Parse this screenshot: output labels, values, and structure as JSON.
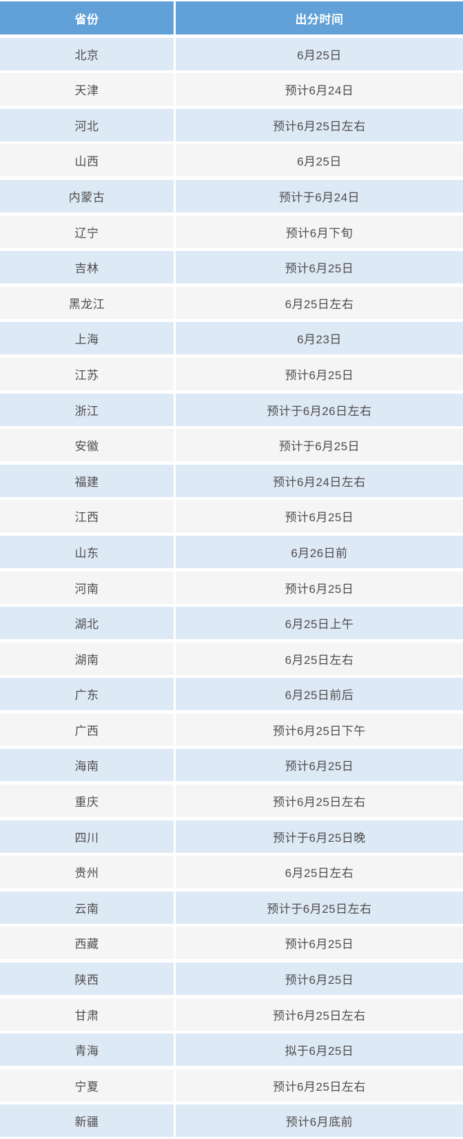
{
  "colors": {
    "header_bg": "#61a1d8",
    "header_text": "#ffffff",
    "row_blue": "#dee9f6",
    "row_gray": "#f5f5f5",
    "body_text": "#4d4d4d"
  },
  "table": {
    "columns": [
      {
        "key": "province",
        "label": "省份"
      },
      {
        "key": "time",
        "label": "出分时间"
      }
    ],
    "rows": [
      {
        "province": "北京",
        "time": "6月25日"
      },
      {
        "province": "天津",
        "time": "预计6月24日"
      },
      {
        "province": "河北",
        "time": "预计6月25日左右"
      },
      {
        "province": "山西",
        "time": "6月25日"
      },
      {
        "province": "内蒙古",
        "time": "预计于6月24日"
      },
      {
        "province": "辽宁",
        "time": "预计6月下旬"
      },
      {
        "province": "吉林",
        "time": "预计6月25日"
      },
      {
        "province": "黑龙江",
        "time": "6月25日左右"
      },
      {
        "province": "上海",
        "time": "6月23日"
      },
      {
        "province": "江苏",
        "time": "预计6月25日"
      },
      {
        "province": "浙江",
        "time": "预计于6月26日左右"
      },
      {
        "province": "安徽",
        "time": "预计于6月25日"
      },
      {
        "province": "福建",
        "time": "预计6月24日左右"
      },
      {
        "province": "江西",
        "time": "预计6月25日"
      },
      {
        "province": "山东",
        "time": "6月26日前"
      },
      {
        "province": "河南",
        "time": "预计6月25日"
      },
      {
        "province": "湖北",
        "time": "6月25日上午"
      },
      {
        "province": "湖南",
        "time": "6月25日左右"
      },
      {
        "province": "广东",
        "time": "6月25日前后"
      },
      {
        "province": "广西",
        "time": "预计6月25日下午"
      },
      {
        "province": "海南",
        "time": "预计6月25日"
      },
      {
        "province": "重庆",
        "time": "预计6月25日左右"
      },
      {
        "province": "四川",
        "time": "预计于6月25日晚"
      },
      {
        "province": "贵州",
        "time": "6月25日左右"
      },
      {
        "province": "云南",
        "time": "预计于6月25日左右"
      },
      {
        "province": "西藏",
        "time": "预计6月25日"
      },
      {
        "province": "陕西",
        "time": "预计6月25日"
      },
      {
        "province": "甘肃",
        "time": "预计6月25日左右"
      },
      {
        "province": "青海",
        "time": "拟于6月25日"
      },
      {
        "province": "宁夏",
        "time": "预计6月25日左右"
      },
      {
        "province": "新疆",
        "time": "预计6月底前"
      }
    ]
  }
}
